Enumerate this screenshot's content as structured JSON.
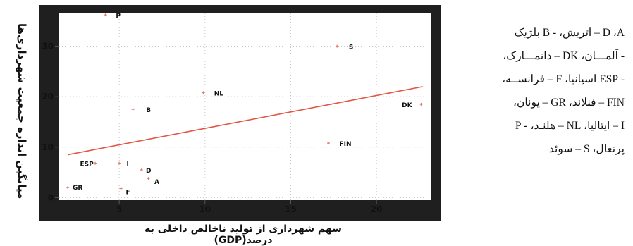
{
  "ylabel": "میانگین اندازه جمعیت شهرداری‌ها",
  "xlabel": "سهم شهرداری از تولید ناخالص داخلی به درصد(GDP)",
  "legend_lines": [
    "D  ،A – اتریش، - B بلژیک",
    "- آلمـــان، DK – دانمـــارک،",
    "-  ESP اسپانیا، F – فرانســه،",
    "FIN – فنلاند، GR – یونان،",
    "I – ایتالیا، NL – هلنـد، -  P",
    "پرتغال، S – سوئد"
  ],
  "colors": {
    "frame": "#1f1f1f",
    "plot_background": "#ffffff",
    "points": "#e07a6e",
    "fit_line": "#e25545",
    "grid": "#c8c8c8",
    "labels": "#111111"
  },
  "chart_data": {
    "type": "scatter",
    "title": "",
    "xlabel": "سهم شهرداری از تولید ناخالص داخلی به درصد(GDP)",
    "ylabel": "میانگین اندازه جمعیت شهرداری‌ها",
    "xlim": [
      1.5,
      23.2
    ],
    "ylim": [
      -0.5,
      36.5
    ],
    "xticks": [
      5,
      10,
      15,
      20
    ],
    "yticks": [
      0,
      10,
      20,
      30
    ],
    "grid": true,
    "points": [
      {
        "label": "P",
        "x": 4.2,
        "y": 36.2
      },
      {
        "label": "S",
        "x": 17.7,
        "y": 30
      },
      {
        "label": "NL",
        "x": 9.9,
        "y": 20.8
      },
      {
        "label": "B",
        "x": 5.8,
        "y": 17.5
      },
      {
        "label": "DK",
        "x": 22.6,
        "y": 18.5
      },
      {
        "label": "FIN",
        "x": 17.2,
        "y": 10.8
      },
      {
        "label": "I",
        "x": 5,
        "y": 6.8
      },
      {
        "label": "ESP",
        "x": 3.6,
        "y": 6.8
      },
      {
        "label": "D",
        "x": 6.3,
        "y": 5.5
      },
      {
        "label": "A",
        "x": 6.7,
        "y": 3.8
      },
      {
        "label": "GR",
        "x": 2,
        "y": 2
      },
      {
        "label": "F",
        "x": 5.1,
        "y": 1.8
      }
    ],
    "fit_line": {
      "x": [
        2,
        22.7
      ],
      "y": [
        8.5,
        22
      ]
    }
  }
}
